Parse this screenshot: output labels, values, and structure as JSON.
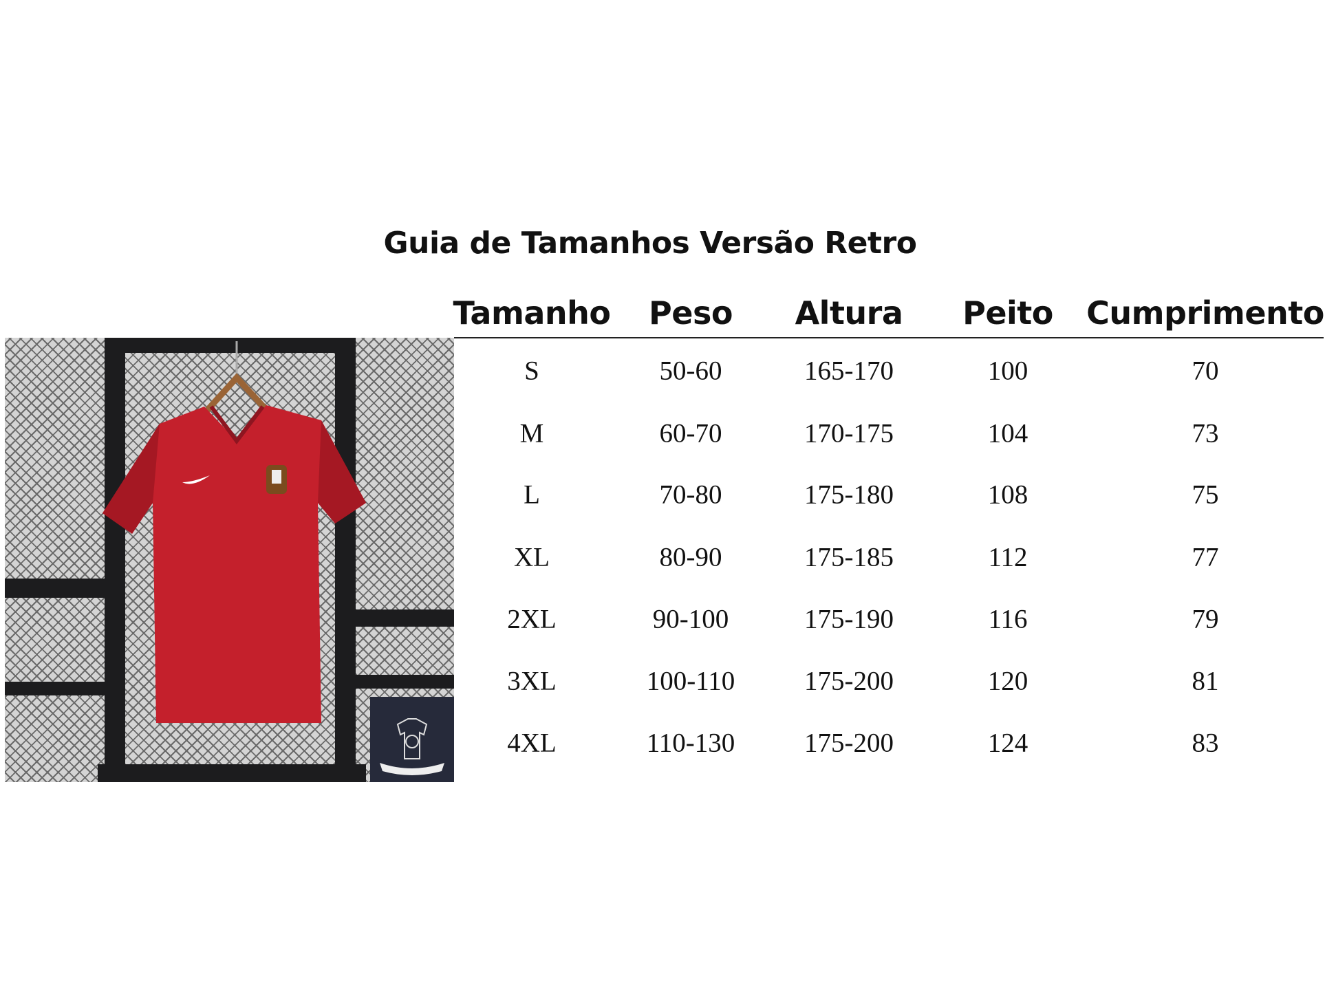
{
  "title": "Guia de Tamanhos Versão Retro",
  "table": {
    "headers": [
      "Tamanho",
      "Peso",
      "Altura",
      "Peito",
      "Cumprimento"
    ],
    "rows": [
      [
        "S",
        "50-60",
        "165-170",
        "100",
        "70"
      ],
      [
        "M",
        "60-70",
        "170-175",
        "104",
        "73"
      ],
      [
        "L",
        "70-80",
        "175-180",
        "108",
        "75"
      ],
      [
        "XL",
        "80-90",
        "175-185",
        "112",
        "77"
      ],
      [
        "2XL",
        "90-100",
        "175-190",
        "116",
        "79"
      ],
      [
        "3XL",
        "100-110",
        "175-200",
        "120",
        "81"
      ],
      [
        "4XL",
        "110-130",
        "175-200",
        "124",
        "83"
      ]
    ]
  },
  "photo": {
    "subject": "red retro football jersey on hanger",
    "shirt_color": "#c4202c",
    "logo_bg": "#262a3a"
  }
}
